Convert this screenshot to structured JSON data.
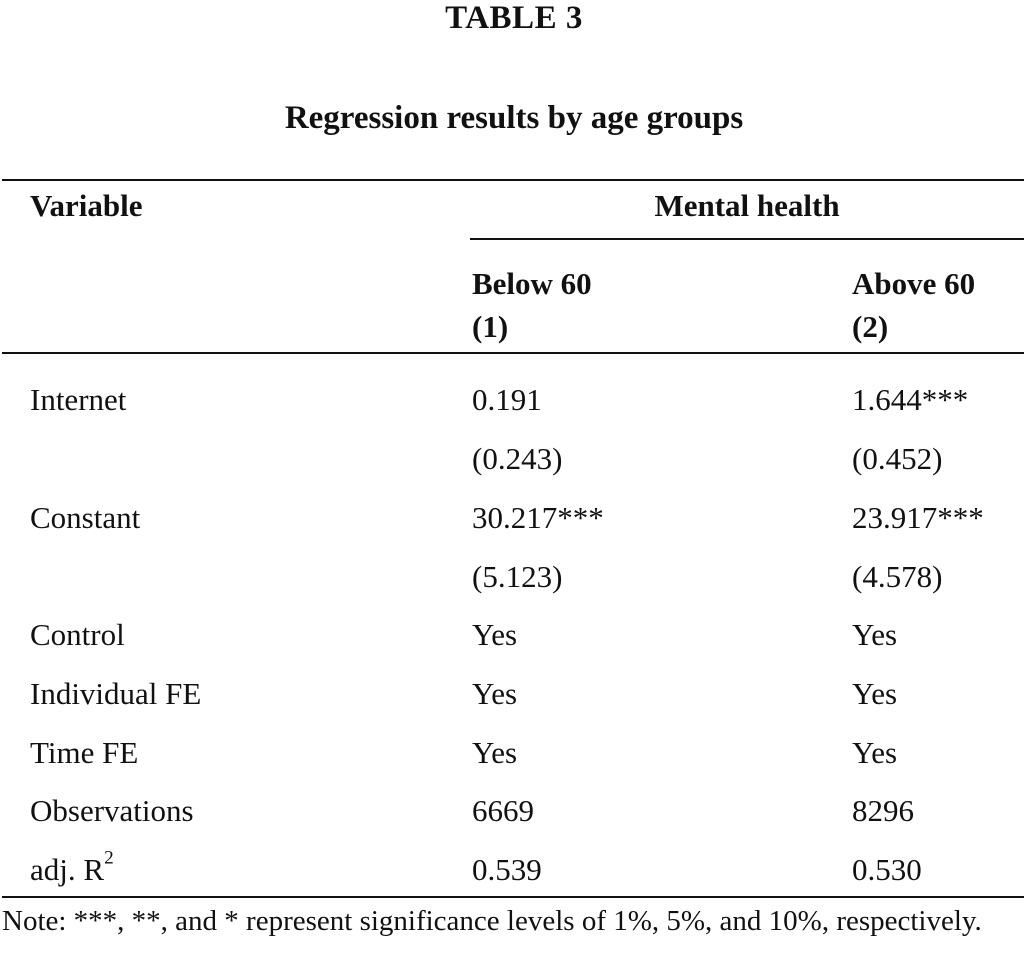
{
  "table": {
    "label": "TABLE 3",
    "title": "Regression results by age groups",
    "header": {
      "variable": "Variable",
      "group": "Mental health",
      "col1_name": "Below 60",
      "col1_num": "(1)",
      "col2_name": "Above 60",
      "col2_num": "(2)"
    },
    "rows": [
      {
        "label": "Internet",
        "col1": "0.191",
        "col2": "1.644***"
      },
      {
        "label": "",
        "col1": "(0.243)",
        "col2": "(0.452)"
      },
      {
        "label": "Constant",
        "col1": "30.217***",
        "col2": "23.917***"
      },
      {
        "label": "",
        "col1": "(5.123)",
        "col2": "(4.578)"
      },
      {
        "label": "Control",
        "col1": "Yes",
        "col2": "Yes"
      },
      {
        "label": "Individual FE",
        "col1": "Yes",
        "col2": "Yes"
      },
      {
        "label": "Time FE",
        "col1": "Yes",
        "col2": "Yes"
      },
      {
        "label": "Observations",
        "col1": "6669",
        "col2": "8296"
      },
      {
        "label": "adj. R",
        "label_sup": "2",
        "col1": "0.539",
        "col2": "0.530"
      }
    ],
    "note": "Note: ***, **, and * represent significance levels of 1%, 5%, and 10%, respectively."
  }
}
